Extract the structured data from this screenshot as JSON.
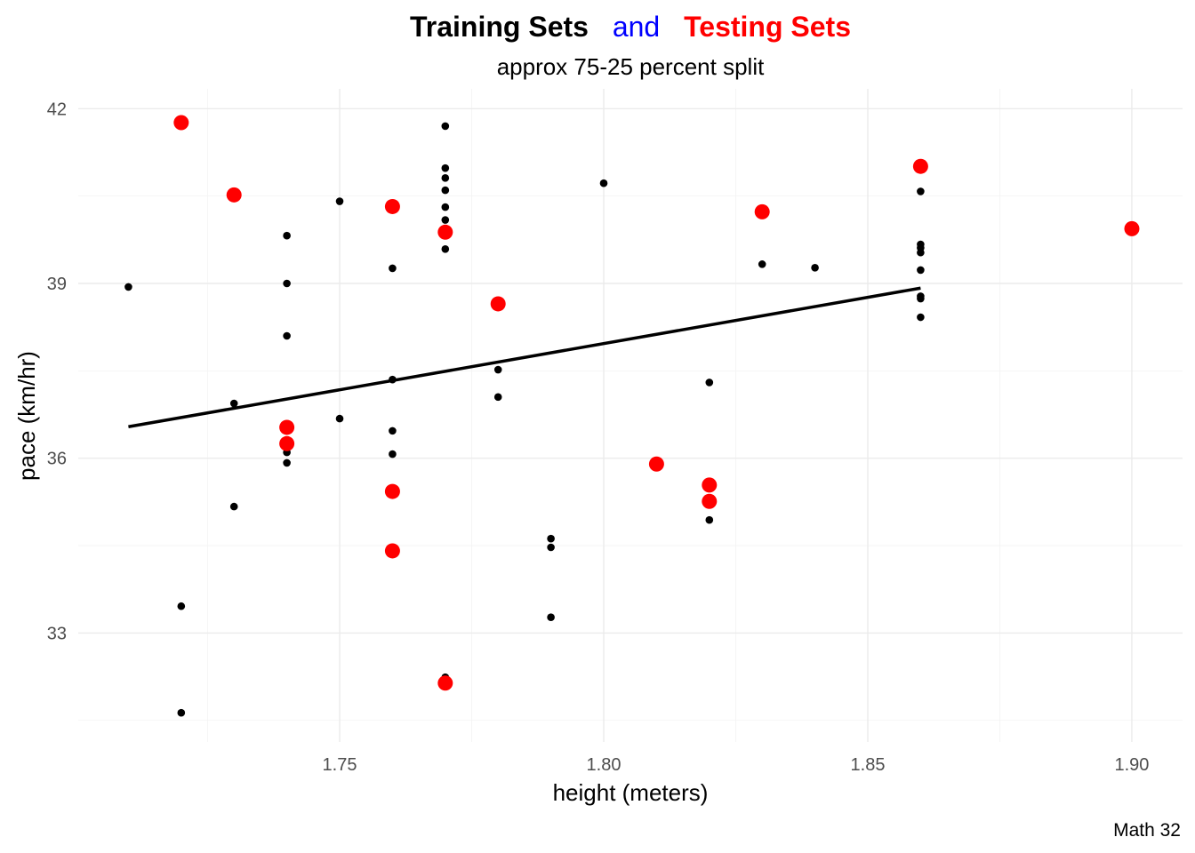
{
  "chart_data": {
    "type": "scatter",
    "title_parts": [
      {
        "text": "Training Sets",
        "color": "#000000"
      },
      {
        "text": "and",
        "color": "#0000FF"
      },
      {
        "text": "Testing Sets",
        "color": "#FF0000"
      }
    ],
    "subtitle": "approx 75-25 percent split",
    "xlabel": "height (meters)",
    "ylabel": "pace (km/hr)",
    "caption": "Math 32",
    "xlim": [
      1.7005,
      1.9096
    ],
    "ylim": [
      31.13,
      42.34
    ],
    "x_ticks": [
      1.75,
      1.8,
      1.85,
      1.9
    ],
    "x_tick_labels": [
      "1.75",
      "1.80",
      "1.85",
      "1.90"
    ],
    "y_ticks": [
      33,
      36,
      39,
      42
    ],
    "y_tick_labels": [
      "33",
      "36",
      "39",
      "42"
    ],
    "x_minor": [
      1.725,
      1.775,
      1.825,
      1.875
    ],
    "y_minor": [
      31.5,
      34.5,
      37.5,
      40.5
    ],
    "grid": true,
    "series": [
      {
        "name": "Training",
        "color": "#000000",
        "points": [
          [
            1.71,
            38.94
          ],
          [
            1.72,
            33.46
          ],
          [
            1.72,
            31.63
          ],
          [
            1.73,
            36.94
          ],
          [
            1.73,
            35.17
          ],
          [
            1.74,
            39.82
          ],
          [
            1.74,
            39.0
          ],
          [
            1.74,
            38.1
          ],
          [
            1.74,
            36.1
          ],
          [
            1.74,
            35.92
          ],
          [
            1.75,
            40.41
          ],
          [
            1.75,
            36.68
          ],
          [
            1.76,
            39.26
          ],
          [
            1.76,
            37.35
          ],
          [
            1.76,
            36.47
          ],
          [
            1.76,
            36.07
          ],
          [
            1.77,
            41.7
          ],
          [
            1.77,
            40.98
          ],
          [
            1.77,
            40.81
          ],
          [
            1.77,
            40.6
          ],
          [
            1.77,
            40.31
          ],
          [
            1.77,
            40.09
          ],
          [
            1.77,
            39.59
          ],
          [
            1.77,
            32.24
          ],
          [
            1.78,
            37.52
          ],
          [
            1.78,
            37.05
          ],
          [
            1.79,
            34.62
          ],
          [
            1.79,
            34.47
          ],
          [
            1.79,
            33.27
          ],
          [
            1.8,
            40.72
          ],
          [
            1.82,
            37.3
          ],
          [
            1.82,
            34.94
          ],
          [
            1.83,
            39.33
          ],
          [
            1.84,
            39.27
          ],
          [
            1.86,
            40.58
          ],
          [
            1.86,
            39.67
          ],
          [
            1.86,
            39.61
          ],
          [
            1.86,
            39.53
          ],
          [
            1.86,
            39.23
          ],
          [
            1.86,
            38.78
          ],
          [
            1.86,
            38.74
          ],
          [
            1.86,
            38.42
          ]
        ]
      },
      {
        "name": "Testing",
        "color": "#FF0000",
        "points": [
          [
            1.72,
            41.76
          ],
          [
            1.73,
            40.52
          ],
          [
            1.74,
            36.53
          ],
          [
            1.74,
            36.25
          ],
          [
            1.76,
            40.32
          ],
          [
            1.76,
            35.43
          ],
          [
            1.76,
            34.41
          ],
          [
            1.77,
            39.88
          ],
          [
            1.77,
            32.14
          ],
          [
            1.78,
            38.65
          ],
          [
            1.81,
            35.9
          ],
          [
            1.82,
            35.54
          ],
          [
            1.82,
            35.26
          ],
          [
            1.83,
            40.23
          ],
          [
            1.86,
            41.01
          ],
          [
            1.9,
            39.94
          ]
        ]
      }
    ],
    "regression_line": {
      "from": [
        1.71,
        36.54
      ],
      "to": [
        1.86,
        38.92
      ],
      "color": "#000000"
    }
  }
}
